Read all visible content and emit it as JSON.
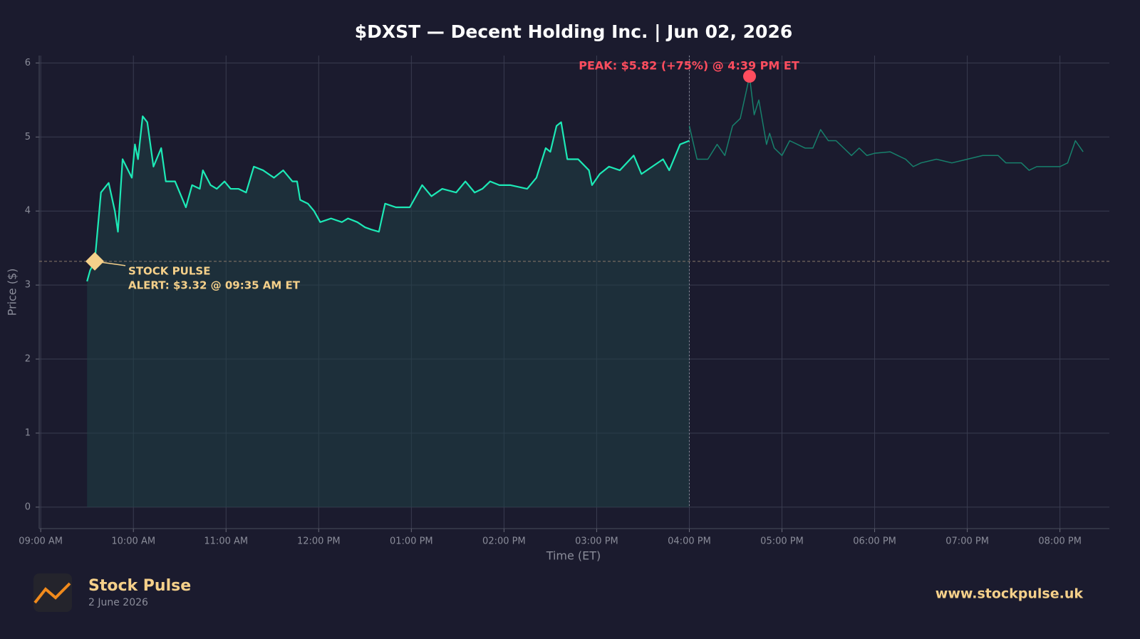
{
  "chart_data": {
    "type": "line",
    "title": "$DXST — Decent Holding Inc.  |  Jun 02, 2026",
    "x_label": "Time (ET)",
    "y_label": "Price ($)",
    "xlim": [
      539,
      1232
    ],
    "ylim": [
      -0.29,
      6.1
    ],
    "xticks": [
      {
        "value": 540,
        "label": "09:00 AM"
      },
      {
        "value": 600,
        "label": "10:00 AM"
      },
      {
        "value": 660,
        "label": "11:00 AM"
      },
      {
        "value": 720,
        "label": "12:00 PM"
      },
      {
        "value": 780,
        "label": "01:00 PM"
      },
      {
        "value": 840,
        "label": "02:00 PM"
      },
      {
        "value": 900,
        "label": "03:00 PM"
      },
      {
        "value": 960,
        "label": "04:00 PM"
      },
      {
        "value": 1020,
        "label": "05:00 PM"
      },
      {
        "value": 1080,
        "label": "06:00 PM"
      },
      {
        "value": 1140,
        "label": "07:00 PM"
      },
      {
        "value": 1200,
        "label": "08:00 PM"
      }
    ],
    "yticks": [
      0,
      1,
      2,
      3,
      4,
      5,
      6
    ],
    "grid": true,
    "series": [
      {
        "color": "#1de9b6",
        "fill": true,
        "x": [
          570,
          572,
          575,
          579,
          584,
          588,
          590,
          593,
          599,
          601,
          603,
          606,
          609,
          613,
          618,
          621,
          627,
          634,
          638,
          643,
          645,
          650,
          654,
          659,
          663,
          668,
          673,
          678,
          684,
          691,
          697,
          703,
          706,
          708,
          713,
          717,
          721,
          728,
          735,
          739,
          745,
          750,
          754,
          759,
          763,
          770,
          779,
          787,
          793,
          800,
          809,
          815,
          821,
          826,
          831,
          837,
          844,
          855,
          861,
          867,
          870,
          874,
          877,
          881,
          888,
          895,
          897,
          902,
          908,
          915,
          924,
          929,
          936,
          943,
          947,
          954,
          960
        ],
        "values": [
          3.05,
          3.2,
          3.32,
          4.25,
          4.38,
          4.0,
          3.72,
          4.7,
          4.45,
          4.9,
          4.7,
          5.28,
          5.2,
          4.6,
          4.85,
          4.4,
          4.4,
          4.05,
          4.35,
          4.3,
          4.55,
          4.35,
          4.3,
          4.4,
          4.3,
          4.3,
          4.25,
          4.6,
          4.55,
          4.45,
          4.55,
          4.4,
          4.4,
          4.15,
          4.1,
          4.0,
          3.85,
          3.9,
          3.85,
          3.9,
          3.85,
          3.78,
          3.75,
          3.72,
          4.1,
          4.05,
          4.05,
          4.35,
          4.2,
          4.3,
          4.25,
          4.4,
          4.25,
          4.3,
          4.4,
          4.35,
          4.35,
          4.3,
          4.45,
          4.85,
          4.8,
          5.15,
          5.2,
          4.7,
          4.7,
          4.55,
          4.35,
          4.5,
          4.6,
          4.55,
          4.75,
          4.5,
          4.6,
          4.7,
          4.55,
          4.9,
          4.95
        ]
      },
      {
        "color": "#17806c",
        "fill": false,
        "x": [
          960,
          965,
          972,
          978,
          983,
          988,
          993,
          999,
          1002,
          1005,
          1010,
          1012,
          1015,
          1020,
          1025,
          1030,
          1035,
          1040,
          1045,
          1050,
          1055,
          1060,
          1065,
          1070,
          1075,
          1080,
          1090,
          1095,
          1100,
          1105,
          1110,
          1120,
          1130,
          1140,
          1150,
          1160,
          1165,
          1175,
          1180,
          1185,
          1195,
          1200,
          1205,
          1210,
          1215
        ],
        "values": [
          5.15,
          4.7,
          4.7,
          4.9,
          4.75,
          5.15,
          5.25,
          5.82,
          5.3,
          5.5,
          4.9,
          5.05,
          4.85,
          4.75,
          4.95,
          4.9,
          4.85,
          4.85,
          5.1,
          4.95,
          4.95,
          4.85,
          4.75,
          4.85,
          4.75,
          4.78,
          4.8,
          4.75,
          4.7,
          4.6,
          4.65,
          4.7,
          4.65,
          4.7,
          4.75,
          4.75,
          4.65,
          4.65,
          4.55,
          4.6,
          4.6,
          4.6,
          4.65,
          4.95,
          4.8
        ]
      }
    ],
    "annotations": [
      {
        "kind": "alert",
        "x": 575,
        "y": 3.32,
        "color": "#f5d08a",
        "text": [
          "STOCK PULSE",
          "ALERT: $3.32 @ 09:35 AM ET"
        ]
      },
      {
        "kind": "peak",
        "x": 999,
        "y": 5.82,
        "color": "#ff4d5e",
        "text": [
          "PEAK: $5.82 (+75%) @ 4:39 PM ET"
        ]
      }
    ]
  },
  "footer": {
    "brand": "Stock Pulse",
    "date": "2 June 2026",
    "url": "www.stockpulse.uk"
  }
}
